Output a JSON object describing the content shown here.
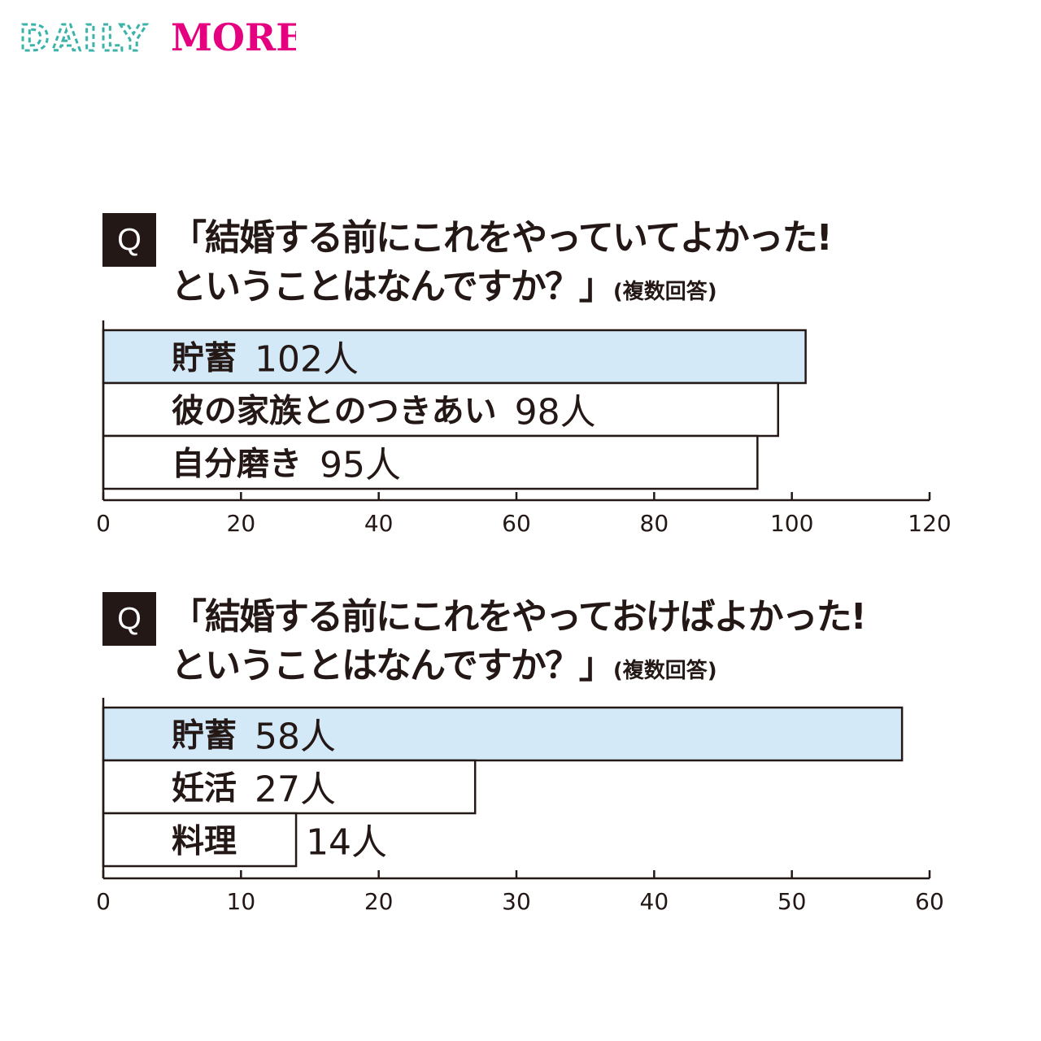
{
  "logo": {
    "part1": "DAILY",
    "part2": "MORE"
  },
  "colors": {
    "highlight": "#d4e9f7",
    "ink": "#231815",
    "logo_pink": "#e4007f"
  },
  "questions": [
    {
      "badge": "Q",
      "line1": "「結婚する前にこれをやっていてよかった!",
      "line2": "ということはなんですか？」",
      "note": "(複数回答)"
    },
    {
      "badge": "Q",
      "line1": "「結婚する前にこれをやっておけばよかった!",
      "line2": "ということはなんですか？」",
      "note": "(複数回答)"
    }
  ],
  "chart_data": [
    {
      "type": "bar",
      "orientation": "horizontal",
      "categories": [
        "貯蓄",
        "彼の家族とのつきあい",
        "自分磨き"
      ],
      "values": [
        102,
        98,
        95
      ],
      "value_labels": [
        "102人",
        "98人",
        "95人"
      ],
      "highlight_index": 0,
      "xlim": [
        0,
        120
      ],
      "xticks": [
        "0",
        "20",
        "40",
        "60",
        "80",
        "100",
        "120"
      ],
      "grid": false
    },
    {
      "type": "bar",
      "orientation": "horizontal",
      "categories": [
        "貯蓄",
        "妊活",
        "料理"
      ],
      "values": [
        58,
        27,
        14
      ],
      "value_labels": [
        "58人",
        "27人",
        "14人"
      ],
      "highlight_index": 0,
      "xlim": [
        0,
        60
      ],
      "xticks": [
        "0",
        "10",
        "20",
        "30",
        "40",
        "50",
        "60"
      ],
      "grid": false
    }
  ]
}
